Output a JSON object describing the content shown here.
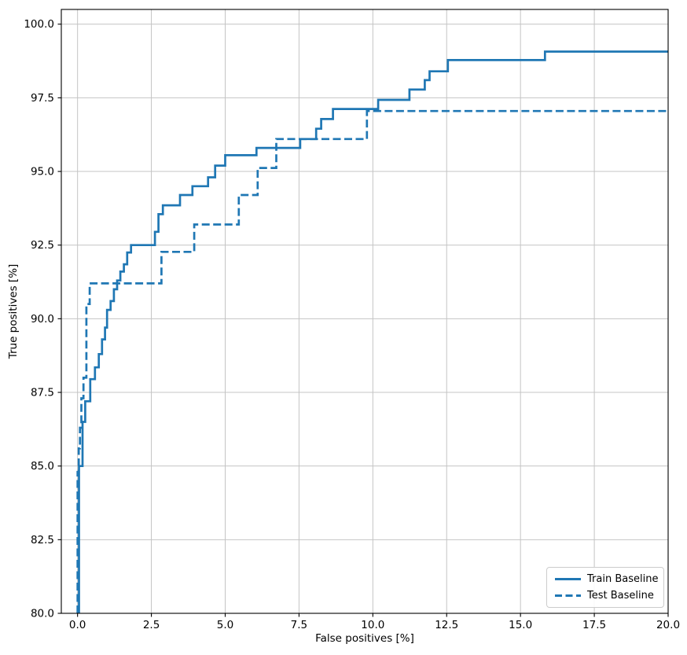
{
  "chart_data": {
    "type": "line",
    "subtype": "step-roc",
    "title": "",
    "xlabel": "False positives [%]",
    "ylabel": "True positives [%]",
    "xlim": [
      -0.55,
      20.0
    ],
    "ylim": [
      80.0,
      100.5
    ],
    "grid": true,
    "grid_color": "#c4c4c4",
    "background_color": "#ffffff",
    "spine_color": "#000000",
    "accent_color": "#1f77b4",
    "legend_position": "lower right",
    "x_ticks": [
      0.0,
      2.5,
      5.0,
      7.5,
      10.0,
      12.5,
      15.0,
      17.5,
      20.0
    ],
    "x_tick_labels": [
      "0.0",
      "2.5",
      "5.0",
      "7.5",
      "10.0",
      "12.5",
      "15.0",
      "17.5",
      "20.0"
    ],
    "y_ticks": [
      80.0,
      82.5,
      85.0,
      87.5,
      90.0,
      92.5,
      95.0,
      97.5,
      100.0
    ],
    "y_tick_labels": [
      "80.0",
      "82.5",
      "85.0",
      "87.5",
      "90.0",
      "92.5",
      "95.0",
      "97.5",
      "100.0"
    ],
    "series": [
      {
        "name": "Train Baseline",
        "style": "solid",
        "color": "#1f77b4",
        "x_end": 20.0,
        "steps": [
          [
            0.05,
            80.0
          ],
          [
            0.05,
            85.0
          ],
          [
            0.17,
            86.5
          ],
          [
            0.26,
            87.2
          ],
          [
            0.43,
            87.95
          ],
          [
            0.59,
            88.35
          ],
          [
            0.72,
            88.8
          ],
          [
            0.83,
            89.3
          ],
          [
            0.93,
            89.7
          ],
          [
            1.0,
            90.3
          ],
          [
            1.12,
            90.6
          ],
          [
            1.23,
            91.0
          ],
          [
            1.34,
            91.3
          ],
          [
            1.45,
            91.6
          ],
          [
            1.57,
            91.85
          ],
          [
            1.68,
            92.25
          ],
          [
            1.81,
            92.5
          ],
          [
            2.62,
            92.95
          ],
          [
            2.74,
            93.55
          ],
          [
            2.89,
            93.85
          ],
          [
            3.47,
            94.2
          ],
          [
            3.89,
            94.5
          ],
          [
            4.42,
            94.8
          ],
          [
            4.66,
            95.2
          ],
          [
            5.0,
            95.55
          ],
          [
            6.06,
            95.8
          ],
          [
            7.54,
            96.1
          ],
          [
            8.08,
            96.45
          ],
          [
            8.25,
            96.78
          ],
          [
            8.65,
            97.12
          ],
          [
            10.18,
            97.43
          ],
          [
            11.24,
            97.78
          ],
          [
            11.76,
            98.1
          ],
          [
            11.92,
            98.4
          ],
          [
            12.54,
            98.78
          ],
          [
            15.83,
            99.07
          ]
        ]
      },
      {
        "name": "Test Baseline",
        "style": "dashed",
        "color": "#1f77b4",
        "x_end": 20.0,
        "steps": [
          [
            0.0,
            80.0
          ],
          [
            0.0,
            84.8
          ],
          [
            0.04,
            85.6
          ],
          [
            0.08,
            86.3
          ],
          [
            0.13,
            87.3
          ],
          [
            0.2,
            88.0
          ],
          [
            0.3,
            90.5
          ],
          [
            0.41,
            91.2
          ],
          [
            2.84,
            92.27
          ],
          [
            3.95,
            93.2
          ],
          [
            5.46,
            94.2
          ],
          [
            6.1,
            95.12
          ],
          [
            6.73,
            96.1
          ],
          [
            9.8,
            97.05
          ]
        ]
      }
    ]
  }
}
